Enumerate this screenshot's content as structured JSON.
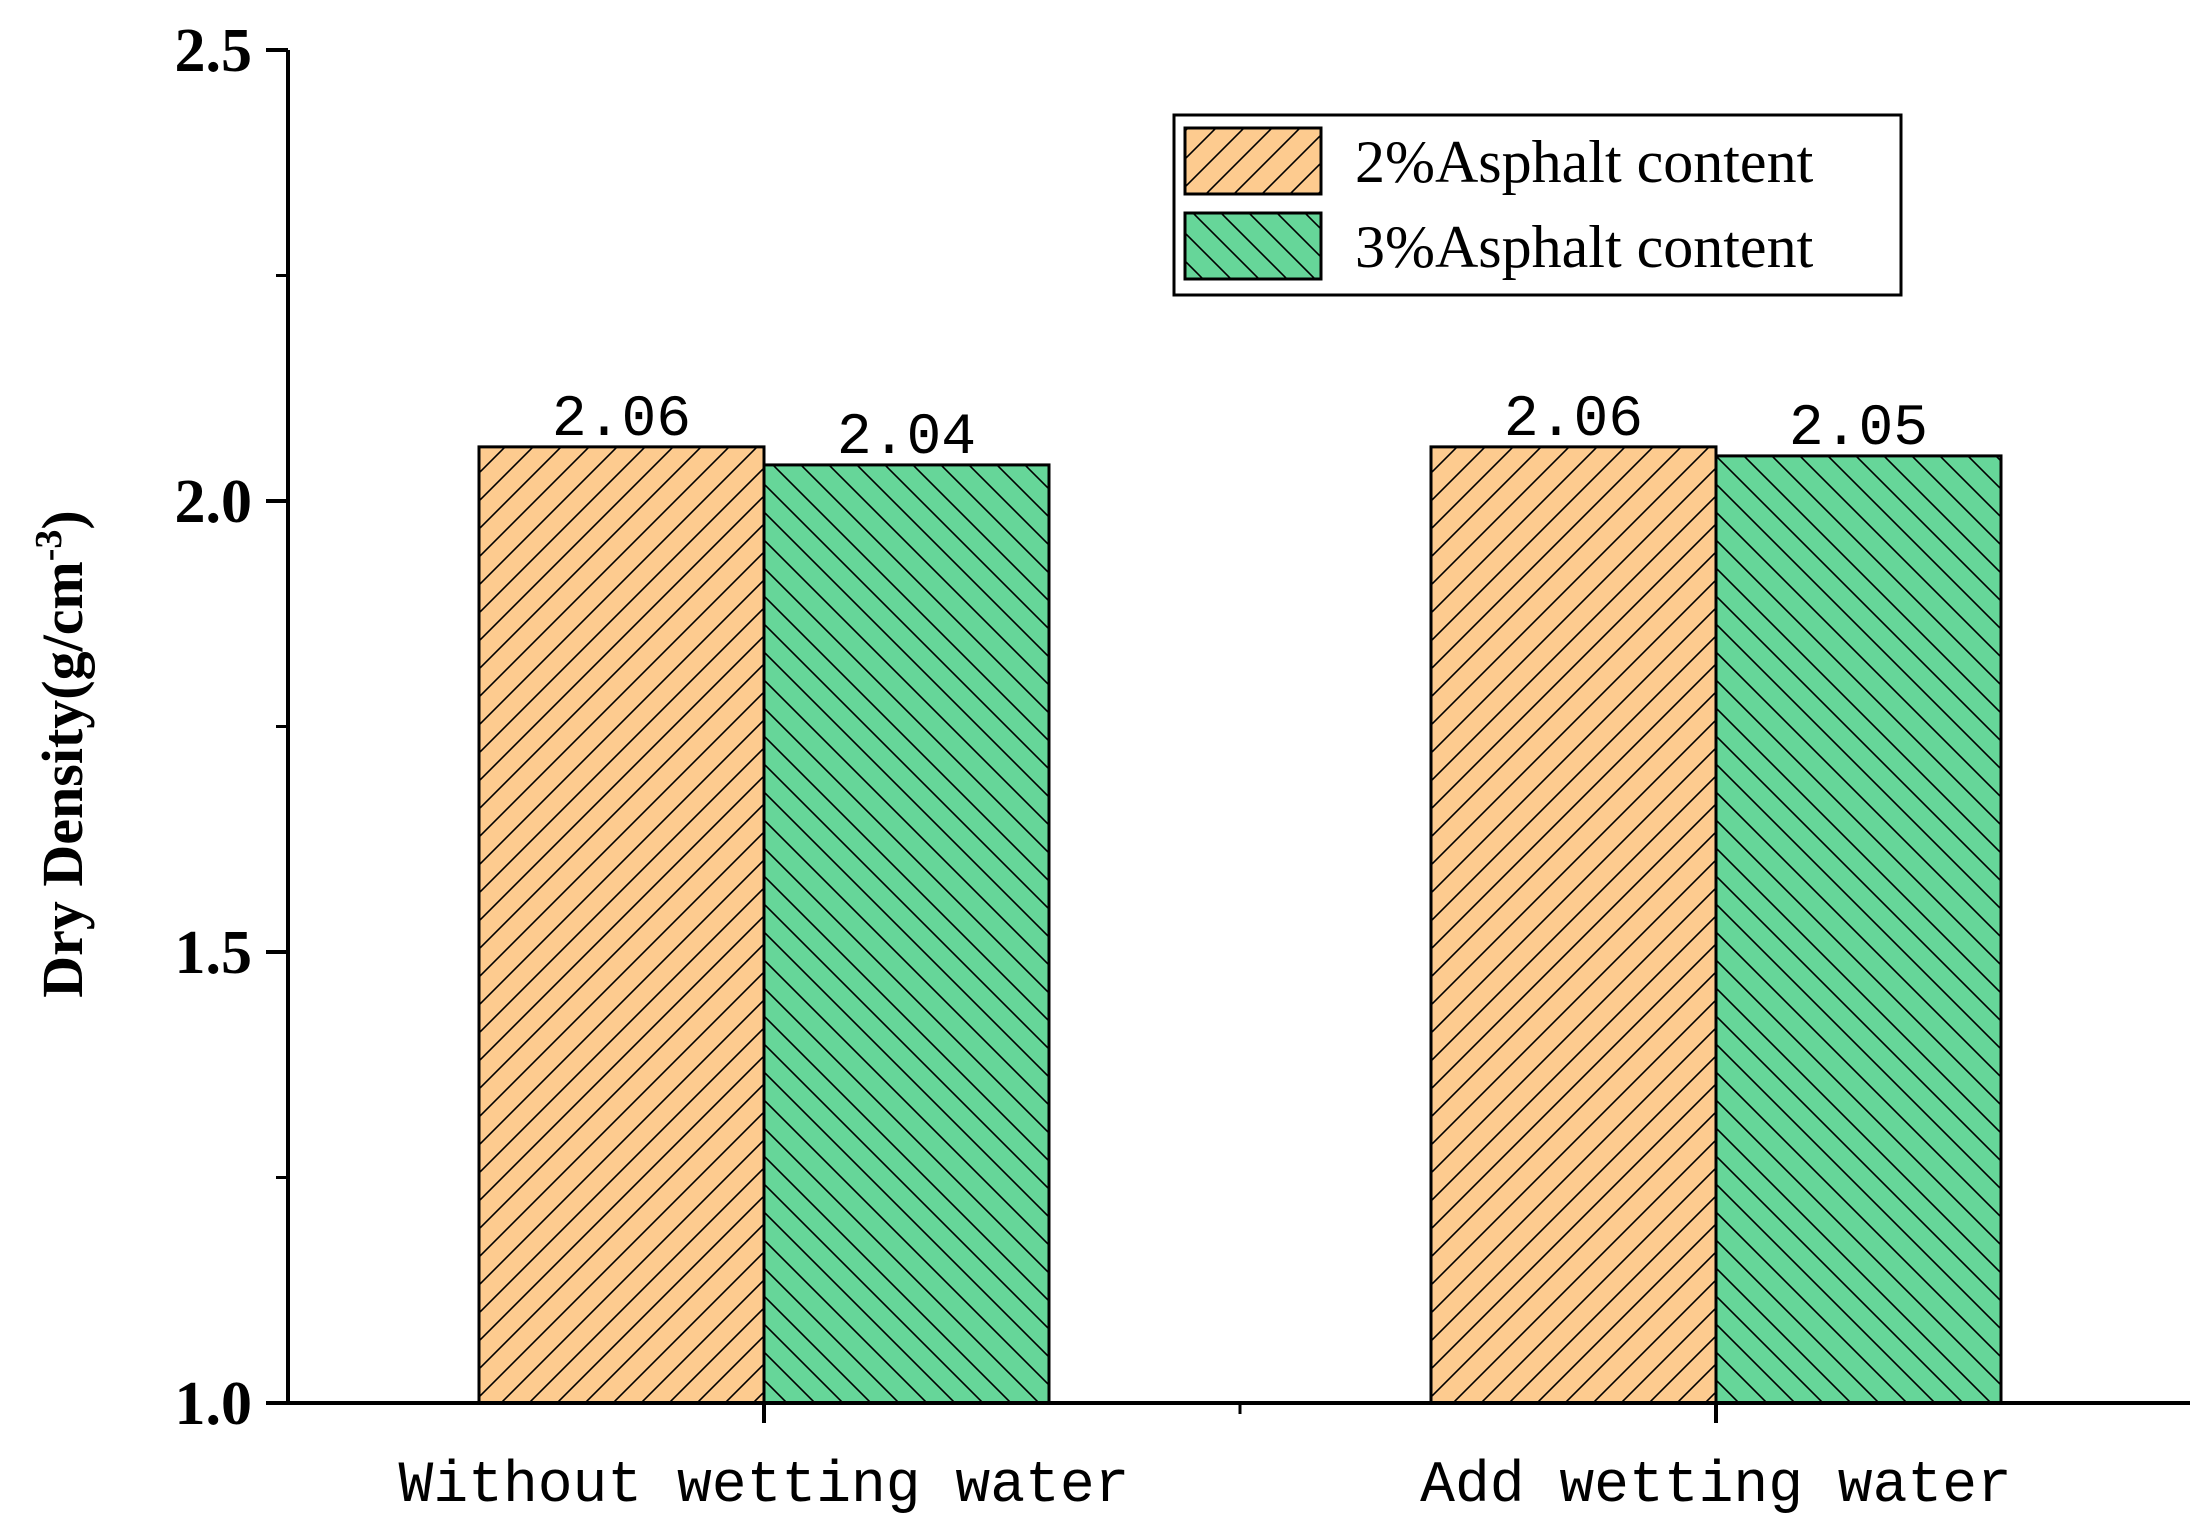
{
  "chart_data": {
    "type": "bar",
    "categories": [
      "Without wetting water",
      "Add wetting water"
    ],
    "series": [
      {
        "name": "2%Asphalt content",
        "values": [
          2.06,
          2.06
        ],
        "value_labels": [
          "2.06",
          "2.06"
        ],
        "color": "#FDCB8F",
        "hatch": "forward-diagonal"
      },
      {
        "name": "3%Asphalt content",
        "values": [
          2.04,
          2.05
        ],
        "value_labels": [
          "2.04",
          "2.05"
        ],
        "color": "#66D699",
        "hatch": "backward-diagonal"
      }
    ],
    "ylabel": "Dry Density(g/cm⁻³)",
    "xlabel": "",
    "ylim": [
      1.0,
      2.5
    ],
    "yticks": [
      1.0,
      1.5,
      2.0,
      2.5
    ],
    "ytick_labels": [
      "1.0",
      "1.5",
      "2.0",
      "2.5"
    ],
    "legend_position": "top-right",
    "grid": false
  }
}
